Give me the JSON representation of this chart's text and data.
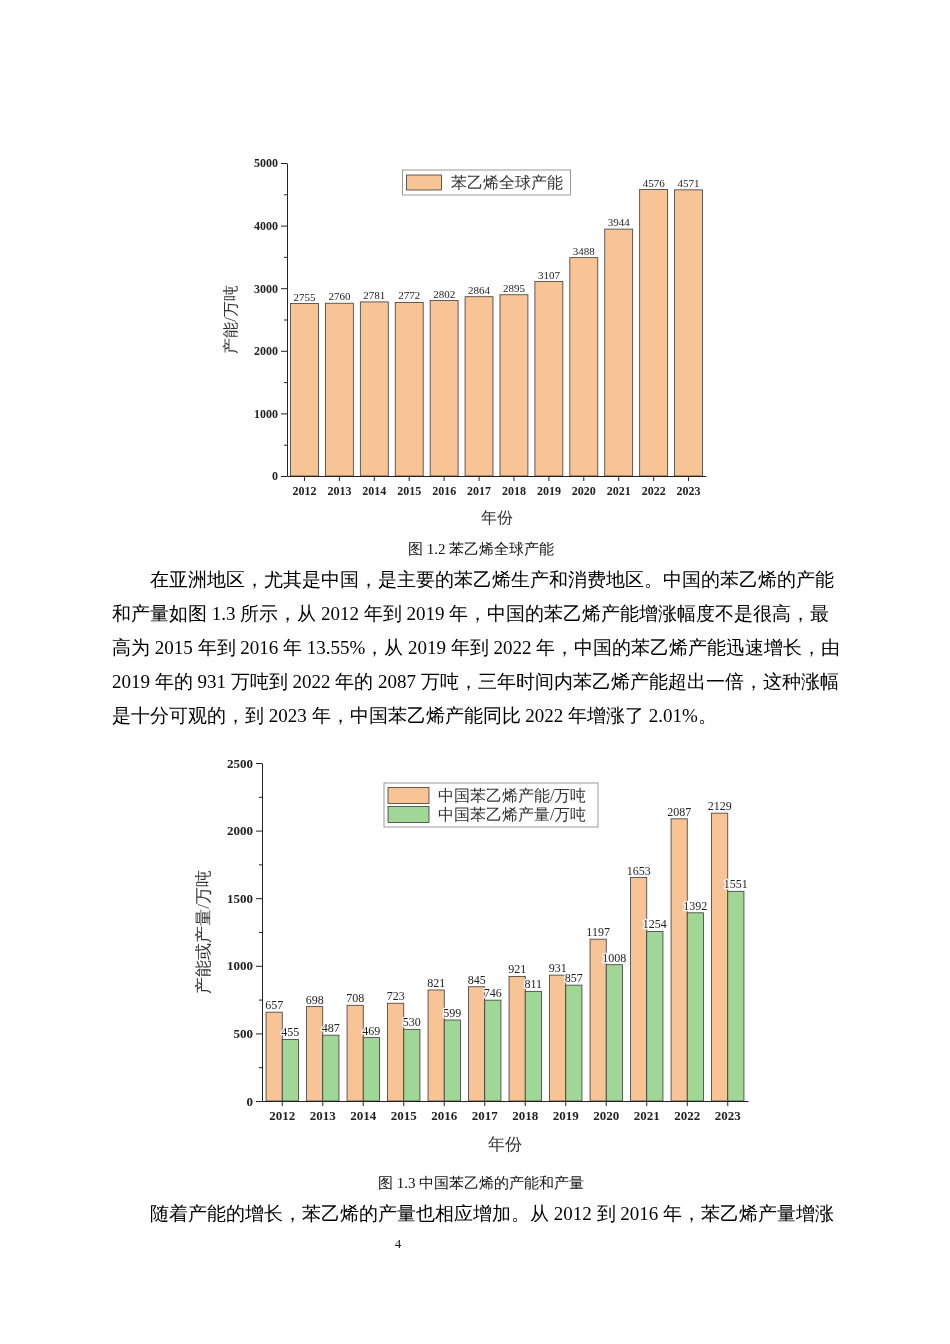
{
  "chart_data": [
    {
      "type": "bar",
      "categories": [
        "2012",
        "2013",
        "2014",
        "2015",
        "2016",
        "2017",
        "2018",
        "2019",
        "2020",
        "2021",
        "2022",
        "2023"
      ],
      "series": [
        {
          "name": "苯乙烯全球产能",
          "color": "#f8c496",
          "values": [
            2755,
            2760,
            2781,
            2772,
            2802,
            2864,
            2895,
            3107,
            3488,
            3944,
            4576,
            4571
          ]
        }
      ],
      "ylim": [
        0,
        5000
      ],
      "yticks": [
        0,
        {
          "value": 500,
          "label": null
        },
        1000,
        {
          "value": 1500,
          "label": null
        },
        2000,
        {
          "value": 2500,
          "label": null
        },
        3000,
        {
          "value": 3500,
          "label": null
        },
        4000,
        {
          "value": 4500,
          "label": null
        },
        5000
      ],
      "xlabel": "年份",
      "ylabel": "产能/万吨",
      "legend": "top",
      "data_labels": true,
      "annotations": [
        "图 1.2 苯乙烯全球产能",
        "在亚洲地区，尤其是中国，是主要的苯乙烯生产和消费地区。中国的苯乙烯的产能和产量如图 1.3 所示，从 2012 年到 2019 年，中国的苯乙烯产能增涨幅度不是很高，最高为 2015 年到 2016 年 13.55%，从 2019 年到 2022 年，中国的苯乙烯产能迅速增长，由 2019 年的 931 万吨到 2022 年的 2087 万吨，三年时间内苯乙烯产能超出一倍，这种涨幅是十分可观的，到 2023 年，中国苯乙烯产能同比 2022 年增涨了 2.01%。"
      ]
    },
    {
      "type": "bar",
      "categories": [
        "2012",
        "2013",
        "2014",
        "2015",
        "2016",
        "2017",
        "2018",
        "2019",
        "2020",
        "2021",
        "2022",
        "2023"
      ],
      "series": [
        {
          "name": "中国苯乙烯产能/万吨",
          "color": "#f8c496",
          "values": [
            657,
            698,
            708,
            723,
            821,
            845,
            921,
            931,
            1197,
            1653,
            2087,
            2129
          ]
        },
        {
          "name": "中国苯乙烯产量/万吨",
          "color": "#a0d696",
          "values": [
            455,
            487,
            469,
            530,
            599,
            746,
            811,
            857,
            1008,
            1254,
            1392,
            1551
          ]
        }
      ],
      "ylim": [
        0,
        2500
      ],
      "yticks": [
        0,
        {
          "value": 250,
          "label": null
        },
        500,
        {
          "value": 750,
          "label": null
        },
        1000,
        {
          "value": 1250,
          "label": null
        },
        1500,
        {
          "value": 1750,
          "label": null
        },
        2000,
        {
          "value": 2250,
          "label": null
        },
        2500
      ],
      "xlabel": "年份",
      "ylabel": "产能或产量/万吨",
      "legend": "top",
      "data_labels": true,
      "annotations": [
        "图 1.3 中国苯乙烯的产能和产量",
        "随着产能的增长，苯乙烯的产量也相应增加。从 2012 到 2016 年，苯乙烯产量增涨",
        "4"
      ]
    }
  ]
}
